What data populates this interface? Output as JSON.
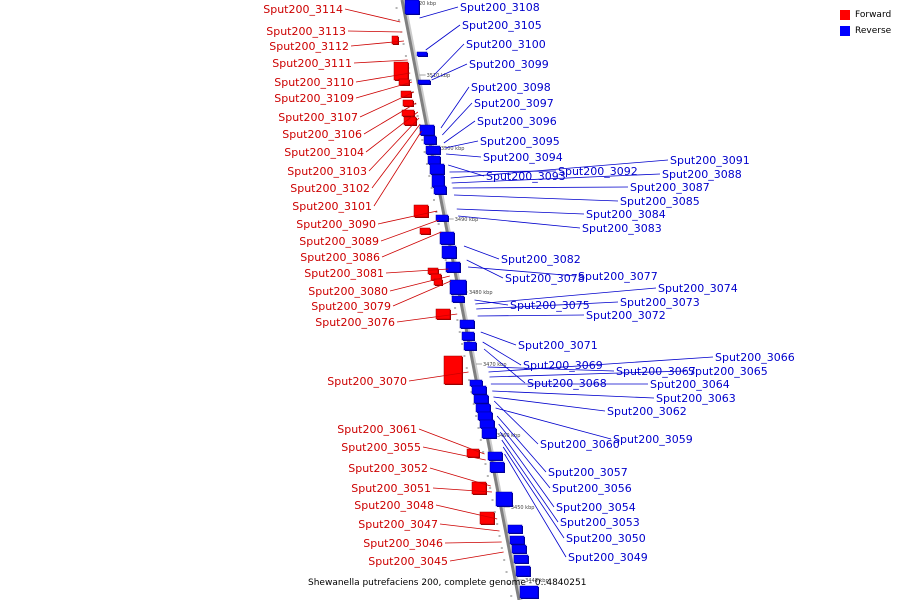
{
  "caption": "Shewanella putrefaciens 200, complete genome - 0..4840251",
  "legend": {
    "forward": {
      "label": "Forward",
      "color": "#ff0000"
    },
    "reverse": {
      "label": "Reverse",
      "color": "#0000ff"
    }
  },
  "ticks": [
    "3520 kbp",
    "3510 kbp",
    "3500 kbp",
    "3490 kbp",
    "3480 kbp",
    "3470 kbp",
    "3460 kbp",
    "3450 kbp",
    "3440 kbp"
  ],
  "forward_genes": [
    "Sput200_3114",
    "Sput200_3113",
    "Sput200_3112",
    "Sput200_3111",
    "Sput200_3110",
    "Sput200_3109",
    "Sput200_3107",
    "Sput200_3106",
    "Sput200_3104",
    "Sput200_3103",
    "Sput200_3102",
    "Sput200_3101",
    "Sput200_3090",
    "Sput200_3089",
    "Sput200_3086",
    "Sput200_3081",
    "Sput200_3080",
    "Sput200_3079",
    "Sput200_3076",
    "Sput200_3070",
    "Sput200_3061",
    "Sput200_3055",
    "Sput200_3052",
    "Sput200_3051",
    "Sput200_3048",
    "Sput200_3047",
    "Sput200_3046",
    "Sput200_3045"
  ],
  "reverse_genes": [
    "Sput200_3108",
    "Sput200_3105",
    "Sput200_3100",
    "Sput200_3099",
    "Sput200_3098",
    "Sput200_3097",
    "Sput200_3096",
    "Sput200_3095",
    "Sput200_3094",
    "Sput200_3093",
    "Sput200_3092",
    "Sput200_3091",
    "Sput200_3088",
    "Sput200_3087",
    "Sput200_3085",
    "Sput200_3084",
    "Sput200_3083",
    "Sput200_3082",
    "Sput200_3078",
    "Sput200_3077",
    "Sput200_3075",
    "Sput200_3074",
    "Sput200_3073",
    "Sput200_3072",
    "Sput200_3071",
    "Sput200_3069",
    "Sput200_3068",
    "Sput200_3067",
    "Sput200_3066",
    "Sput200_3065",
    "Sput200_3064",
    "Sput200_3063",
    "Sput200_3062",
    "Sput200_3060",
    "Sput200_3059",
    "Sput200_3057",
    "Sput200_3056",
    "Sput200_3054",
    "Sput200_3053",
    "Sput200_3050",
    "Sput200_3049"
  ]
}
